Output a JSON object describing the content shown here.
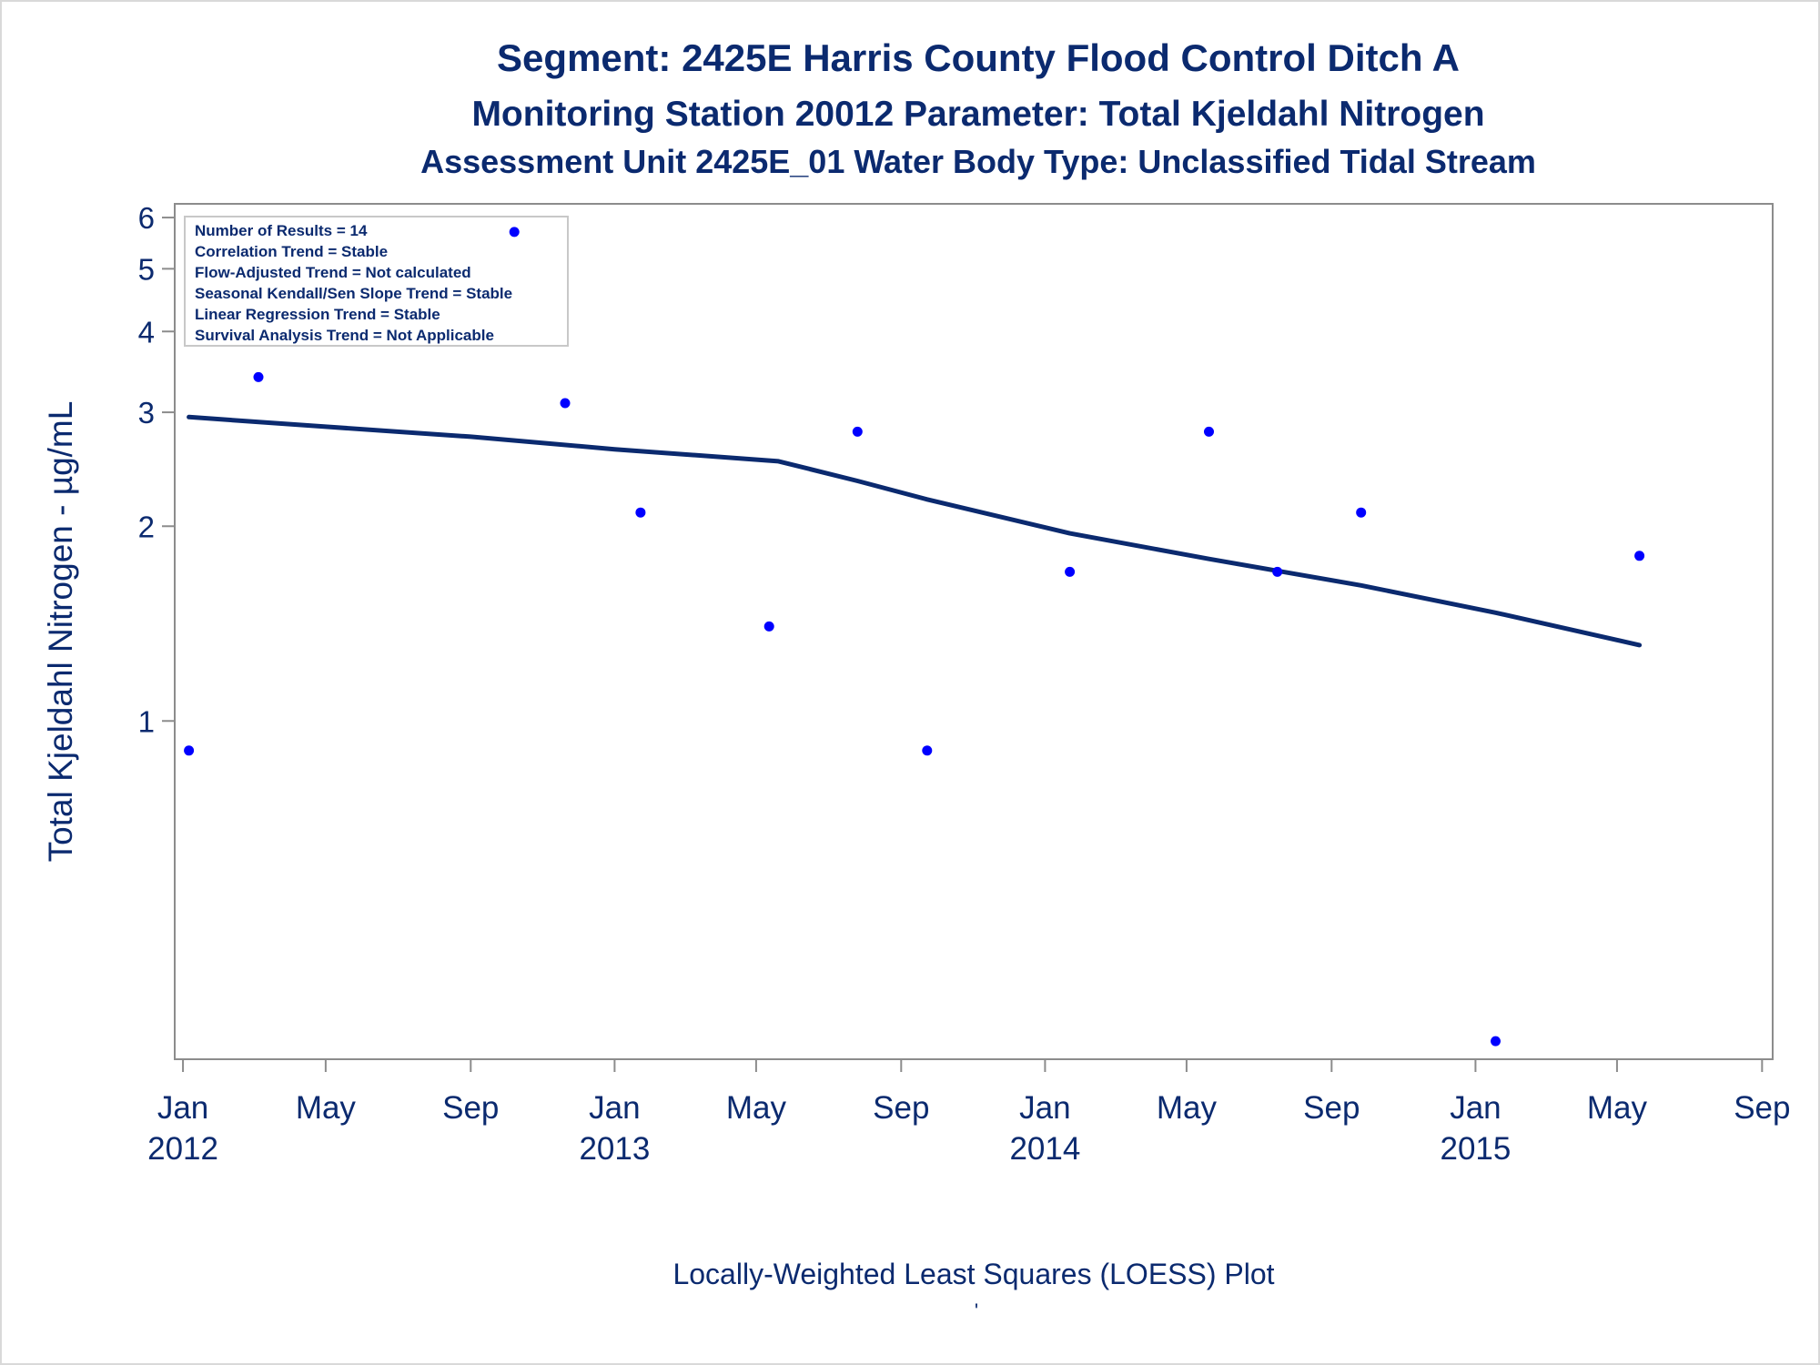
{
  "chart_data": {
    "type": "scatter",
    "title": "Segment: 2425E  Harris County Flood Control Ditch A",
    "subtitle": "Monitoring Station 20012 Parameter: Total Kjeldahl Nitrogen",
    "subtitle2": "Assessment Unit 2425E_01   Water Body Type: Unclassified Tidal Stream",
    "ylabel": "Total Kjeldahl Nitrogen -  µg/mL",
    "footnote": "Locally-Weighted Least Squares (LOESS) Plot",
    "footnote_mark": "'",
    "y_scale": "log",
    "ylim": [
      0.3,
      6.3
    ],
    "y_ticks": [
      1,
      2,
      3,
      4,
      5,
      6
    ],
    "xlim": [
      "2011-12-25",
      "2015-09-10"
    ],
    "x_ticks": [
      {
        "date": "2012-01-01",
        "label": "Jan",
        "year": "2012"
      },
      {
        "date": "2012-05-01",
        "label": "May",
        "year": ""
      },
      {
        "date": "2012-09-01",
        "label": "Sep",
        "year": ""
      },
      {
        "date": "2013-01-01",
        "label": "Jan",
        "year": "2013"
      },
      {
        "date": "2013-05-01",
        "label": "May",
        "year": ""
      },
      {
        "date": "2013-09-01",
        "label": "Sep",
        "year": ""
      },
      {
        "date": "2014-01-01",
        "label": "Jan",
        "year": "2014"
      },
      {
        "date": "2014-05-01",
        "label": "May",
        "year": ""
      },
      {
        "date": "2014-09-01",
        "label": "Sep",
        "year": ""
      },
      {
        "date": "2015-01-01",
        "label": "Jan",
        "year": "2015"
      },
      {
        "date": "2015-05-01",
        "label": "May",
        "year": ""
      },
      {
        "date": "2015-09-01",
        "label": "Sep",
        "year": ""
      }
    ],
    "stats": [
      "Number of Results = 14",
      "Correlation Trend = Stable",
      "Flow-Adjusted Trend = Not calculated",
      "Seasonal Kendall/Sen Slope Trend = Stable",
      "Linear Regression Trend = Stable",
      "Survival Analysis Trend = Not Applicable"
    ],
    "legend_position": "top-left",
    "grid": false,
    "series": [
      {
        "kind": "points",
        "color": "#0000ff",
        "points": [
          {
            "x": "2012-01-06",
            "y": 0.9
          },
          {
            "x": "2012-03-05",
            "y": 3.4
          },
          {
            "x": "2012-10-08",
            "y": 5.7
          },
          {
            "x": "2012-11-20",
            "y": 3.1
          },
          {
            "x": "2013-01-23",
            "y": 2.1
          },
          {
            "x": "2013-05-12",
            "y": 1.4
          },
          {
            "x": "2013-07-26",
            "y": 2.8
          },
          {
            "x": "2013-09-23",
            "y": 0.9
          },
          {
            "x": "2014-01-22",
            "y": 1.7
          },
          {
            "x": "2014-05-20",
            "y": 2.8
          },
          {
            "x": "2014-07-17",
            "y": 1.7
          },
          {
            "x": "2014-09-26",
            "y": 2.1
          },
          {
            "x": "2015-01-18",
            "y": 0.32
          },
          {
            "x": "2015-05-20",
            "y": 1.8
          }
        ]
      },
      {
        "kind": "loess",
        "color": "#0b2a6f",
        "points": [
          {
            "x": "2012-01-06",
            "y": 2.95
          },
          {
            "x": "2012-05-01",
            "y": 2.85
          },
          {
            "x": "2012-09-01",
            "y": 2.75
          },
          {
            "x": "2013-01-01",
            "y": 2.63
          },
          {
            "x": "2013-05-20",
            "y": 2.52
          },
          {
            "x": "2013-07-26",
            "y": 2.35
          },
          {
            "x": "2013-09-23",
            "y": 2.2
          },
          {
            "x": "2014-01-22",
            "y": 1.95
          },
          {
            "x": "2014-05-20",
            "y": 1.78
          },
          {
            "x": "2014-09-26",
            "y": 1.62
          },
          {
            "x": "2015-01-18",
            "y": 1.47
          },
          {
            "x": "2015-05-20",
            "y": 1.31
          }
        ]
      }
    ]
  }
}
